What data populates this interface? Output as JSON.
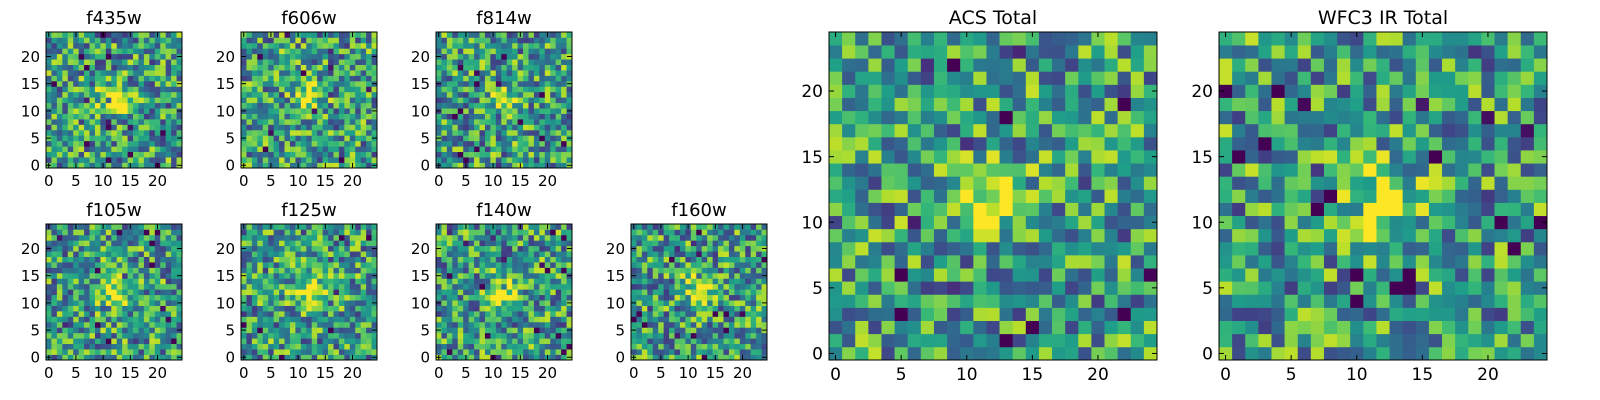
{
  "chart_data": [
    {
      "type": "heatmap",
      "title": "f435w",
      "colormap": "viridis",
      "xlim": [
        0,
        24
      ],
      "ylim": [
        0,
        24
      ],
      "xticks": [
        0,
        5,
        10,
        15,
        20
      ],
      "yticks": [
        0,
        5,
        10,
        15,
        20
      ],
      "grid_size": 25,
      "peak": [
        12,
        12
      ]
    },
    {
      "type": "heatmap",
      "title": "f606w",
      "colormap": "viridis",
      "xlim": [
        0,
        24
      ],
      "ylim": [
        0,
        24
      ],
      "xticks": [
        0,
        5,
        10,
        15,
        20
      ],
      "yticks": [
        0,
        5,
        10,
        15,
        20
      ],
      "grid_size": 25,
      "peak": [
        12,
        12
      ]
    },
    {
      "type": "heatmap",
      "title": "f814w",
      "colormap": "viridis",
      "xlim": [
        0,
        24
      ],
      "ylim": [
        0,
        24
      ],
      "xticks": [
        0,
        5,
        10,
        15,
        20
      ],
      "yticks": [
        0,
        5,
        10,
        15,
        20
      ],
      "grid_size": 25,
      "peak": [
        12,
        12
      ]
    },
    {
      "type": "heatmap",
      "title": "f105w",
      "colormap": "viridis",
      "xlim": [
        0,
        24
      ],
      "ylim": [
        0,
        24
      ],
      "xticks": [
        0,
        5,
        10,
        15,
        20
      ],
      "yticks": [
        0,
        5,
        10,
        15,
        20
      ],
      "grid_size": 25,
      "peak": [
        12,
        12
      ]
    },
    {
      "type": "heatmap",
      "title": "f125w",
      "colormap": "viridis",
      "xlim": [
        0,
        24
      ],
      "ylim": [
        0,
        24
      ],
      "xticks": [
        0,
        5,
        10,
        15,
        20
      ],
      "yticks": [
        0,
        5,
        10,
        15,
        20
      ],
      "grid_size": 25,
      "peak": [
        12,
        12
      ]
    },
    {
      "type": "heatmap",
      "title": "f140w",
      "colormap": "viridis",
      "xlim": [
        0,
        24
      ],
      "ylim": [
        0,
        24
      ],
      "xticks": [
        0,
        5,
        10,
        15,
        20
      ],
      "yticks": [
        0,
        5,
        10,
        15,
        20
      ],
      "grid_size": 25,
      "peak": [
        12,
        12
      ]
    },
    {
      "type": "heatmap",
      "title": "f160w",
      "colormap": "viridis",
      "xlim": [
        0,
        24
      ],
      "ylim": [
        0,
        24
      ],
      "xticks": [
        0,
        5,
        10,
        15,
        20
      ],
      "yticks": [
        0,
        5,
        10,
        15,
        20
      ],
      "grid_size": 25,
      "peak": [
        12,
        12
      ]
    },
    {
      "type": "heatmap",
      "title": "ACS Total",
      "colormap": "viridis",
      "xlim": [
        0,
        24
      ],
      "ylim": [
        0,
        24
      ],
      "xticks": [
        0,
        5,
        10,
        15,
        20
      ],
      "yticks": [
        0,
        5,
        10,
        15,
        20
      ],
      "grid_size": 25,
      "peak": [
        12,
        12
      ]
    },
    {
      "type": "heatmap",
      "title": "WFC3 IR Total",
      "colormap": "viridis",
      "xlim": [
        0,
        24
      ],
      "ylim": [
        0,
        24
      ],
      "xticks": [
        0,
        5,
        10,
        15,
        20
      ],
      "yticks": [
        0,
        5,
        10,
        15,
        20
      ],
      "grid_size": 25,
      "peak": [
        12,
        12
      ]
    }
  ]
}
